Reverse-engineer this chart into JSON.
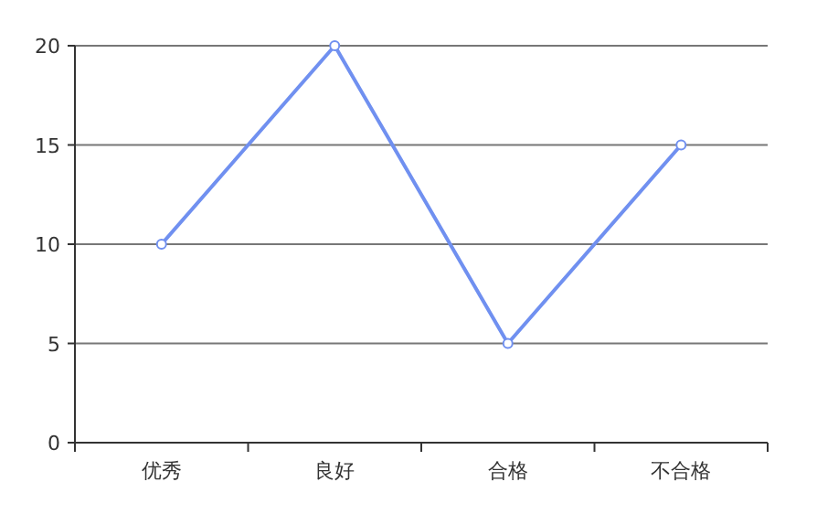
{
  "chart_data": {
    "type": "line",
    "categories": [
      "优秀",
      "良好",
      "合格",
      "不合格"
    ],
    "series": [
      {
        "color": "#7090f0",
        "values": [
          10,
          20,
          5,
          15
        ]
      }
    ],
    "ylim": [
      0,
      20
    ],
    "yticks": [
      0,
      5,
      10,
      15,
      20
    ],
    "grid": "y",
    "marker": "circle",
    "line_style": "solid"
  }
}
